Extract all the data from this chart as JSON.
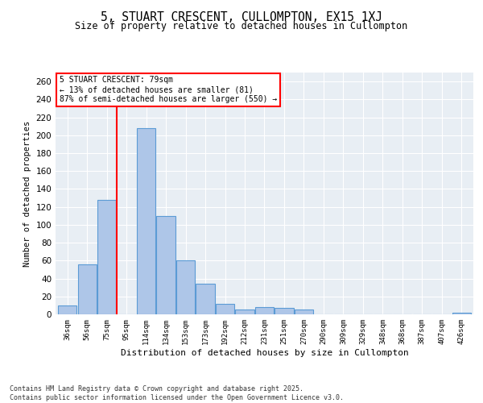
{
  "title": "5, STUART CRESCENT, CULLOMPTON, EX15 1XJ",
  "subtitle": "Size of property relative to detached houses in Cullompton",
  "xlabel": "Distribution of detached houses by size in Cullompton",
  "ylabel": "Number of detached properties",
  "categories": [
    "36sqm",
    "56sqm",
    "75sqm",
    "95sqm",
    "114sqm",
    "134sqm",
    "153sqm",
    "173sqm",
    "192sqm",
    "212sqm",
    "231sqm",
    "251sqm",
    "270sqm",
    "290sqm",
    "309sqm",
    "329sqm",
    "348sqm",
    "368sqm",
    "387sqm",
    "407sqm",
    "426sqm"
  ],
  "values": [
    10,
    56,
    128,
    0,
    208,
    110,
    60,
    34,
    12,
    5,
    8,
    7,
    5,
    0,
    0,
    0,
    0,
    0,
    0,
    0,
    2
  ],
  "bar_color": "#aec6e8",
  "bar_edge_color": "#5b9bd5",
  "background_color": "#e8eef4",
  "grid_color": "#ffffff",
  "red_line_x": 2.5,
  "annotation_text": "5 STUART CRESCENT: 79sqm\n← 13% of detached houses are smaller (81)\n87% of semi-detached houses are larger (550) →",
  "footer_text": "Contains HM Land Registry data © Crown copyright and database right 2025.\nContains public sector information licensed under the Open Government Licence v3.0.",
  "ylim": [
    0,
    270
  ],
  "yticks": [
    0,
    20,
    40,
    60,
    80,
    100,
    120,
    140,
    160,
    180,
    200,
    220,
    240,
    260
  ]
}
